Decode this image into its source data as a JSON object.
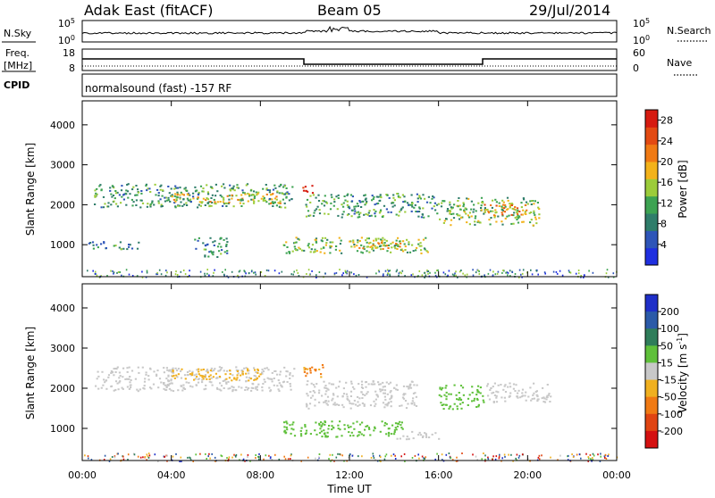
{
  "header": {
    "station": "Adak East (fitACF)",
    "beam": "Beam 05",
    "date": "29/Jul/2014"
  },
  "panels": {
    "nsky": {
      "left_label": "N.Sky",
      "left_ticks": [
        "10^5",
        "10^0"
      ],
      "right_label": "N.Search",
      "right_ticks": [
        "10^5",
        "10^0"
      ]
    },
    "freq": {
      "left_label_1": "Freq.",
      "left_label_2": "[MHz]",
      "left_ticks": [
        "18",
        "8"
      ],
      "right_label": "Nave",
      "right_ticks": [
        "60",
        "0"
      ]
    },
    "cpid": {
      "label": "CPID",
      "text": "normalsound (fast) -157 RF"
    }
  },
  "colors": {
    "power": [
      "#1f2fe0",
      "#2e55b8",
      "#2f7d6a",
      "#3da352",
      "#9ccc3a",
      "#f3b21a",
      "#f07a14",
      "#e34a12",
      "#d61b10"
    ],
    "velocity": [
      "#1f2fc8",
      "#2b5aa8",
      "#2f7d5a",
      "#5fc03a",
      "#c8c8c8",
      "#f0b020",
      "#f07a14",
      "#e04412",
      "#d41010"
    ]
  },
  "chart_data": [
    {
      "type": "heatmap",
      "name": "power",
      "xlabel": "",
      "ylabel": "Slant Range [km]",
      "x_ticks": [
        "00:00",
        "04:00",
        "08:00",
        "12:00",
        "16:00",
        "20:00",
        "00:00"
      ],
      "y_ticks": [
        1000,
        2000,
        3000,
        4000
      ],
      "xlim": [
        0,
        24
      ],
      "ylim": [
        200,
        4600
      ],
      "colorbar": {
        "label": "Power [dB]",
        "ticks": [
          4,
          8,
          12,
          16,
          20,
          24,
          28
        ],
        "range": [
          0,
          30
        ]
      },
      "regions": [
        {
          "t0": 0.5,
          "t1": 9.5,
          "r0": 1950,
          "r1": 2550,
          "level": 0.35
        },
        {
          "t0": 4.0,
          "t1": 9.0,
          "r0": 2050,
          "r1": 2300,
          "level": 0.6
        },
        {
          "t0": 9.8,
          "t1": 10.4,
          "r0": 2250,
          "r1": 2500,
          "level": 0.95
        },
        {
          "t0": 10.0,
          "t1": 16.0,
          "r0": 1700,
          "r1": 2300,
          "level": 0.35
        },
        {
          "t0": 9.0,
          "t1": 15.5,
          "r0": 800,
          "r1": 1200,
          "level": 0.45
        },
        {
          "t0": 12.0,
          "t1": 14.5,
          "r0": 900,
          "r1": 1150,
          "level": 0.6
        },
        {
          "t0": 16.0,
          "t1": 20.5,
          "r0": 1500,
          "r1": 2200,
          "level": 0.45
        },
        {
          "t0": 18.0,
          "t1": 20.0,
          "r0": 1750,
          "r1": 2050,
          "level": 0.65
        },
        {
          "t0": 0.2,
          "t1": 2.5,
          "r0": 900,
          "r1": 1100,
          "level": 0.3
        },
        {
          "t0": 5.0,
          "t1": 6.5,
          "r0": 700,
          "r1": 1200,
          "level": 0.3
        }
      ]
    },
    {
      "type": "heatmap",
      "name": "velocity",
      "xlabel": "Time UT",
      "ylabel": "Slant Range [km]",
      "x_ticks": [
        "00:00",
        "04:00",
        "08:00",
        "12:00",
        "16:00",
        "20:00",
        "00:00"
      ],
      "y_ticks": [
        1000,
        2000,
        3000,
        4000
      ],
      "xlim": [
        0,
        24
      ],
      "ylim": [
        200,
        4600
      ],
      "colorbar": {
        "label": "Velocity [m s^-1]",
        "ticks": [
          200,
          100,
          50,
          15,
          -15,
          -50,
          -100,
          -200
        ],
        "range": [
          -250,
          250
        ]
      },
      "regions": [
        {
          "t0": 0.5,
          "t1": 9.5,
          "r0": 1950,
          "r1": 2550,
          "value": 0
        },
        {
          "t0": 4.0,
          "t1": 8.0,
          "r0": 2200,
          "r1": 2500,
          "value": -30
        },
        {
          "t0": 9.8,
          "t1": 10.8,
          "r0": 2300,
          "r1": 2650,
          "value": -60
        },
        {
          "t0": 10.0,
          "t1": 15.0,
          "r0": 1500,
          "r1": 2200,
          "value": 0
        },
        {
          "t0": 9.0,
          "t1": 14.5,
          "r0": 800,
          "r1": 1200,
          "value": 30
        },
        {
          "t0": 14.0,
          "t1": 16.0,
          "r0": 750,
          "r1": 950,
          "value": 0
        },
        {
          "t0": 16.0,
          "t1": 18.0,
          "r0": 1500,
          "r1": 2100,
          "value": 30
        },
        {
          "t0": 18.0,
          "t1": 21.0,
          "r0": 1650,
          "r1": 2150,
          "value": 0
        }
      ]
    }
  ]
}
